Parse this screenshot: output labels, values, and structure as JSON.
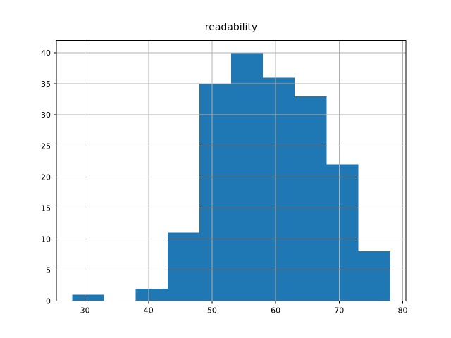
{
  "chart_data": {
    "type": "bar",
    "subtype": "histogram",
    "title": "readability",
    "xlabel": "",
    "ylabel": "",
    "bin_edges": [
      28,
      33,
      38,
      43,
      48,
      53,
      58,
      63,
      68,
      73,
      78
    ],
    "values": [
      1,
      0,
      2,
      11,
      35,
      40,
      36,
      33,
      22,
      8
    ],
    "xticks": [
      30,
      40,
      50,
      60,
      70,
      80
    ],
    "yticks": [
      0,
      5,
      10,
      15,
      20,
      25,
      30,
      35,
      40
    ],
    "xlim": [
      25.5,
      80.5
    ],
    "ylim": [
      0,
      42
    ],
    "grid": true,
    "grid_above_bars": true,
    "legend": null,
    "colors": {
      "bar": "#1f77b4",
      "grid": "#b0b0b0",
      "axis": "#000000",
      "background": "#ffffff"
    }
  }
}
